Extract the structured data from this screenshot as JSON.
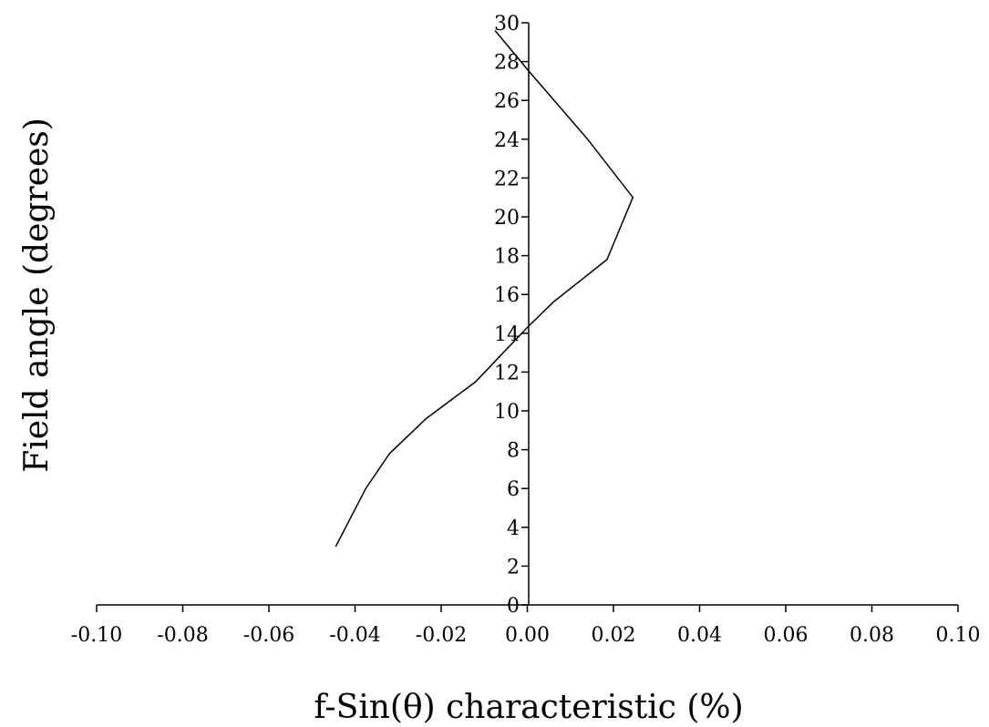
{
  "chart_data": {
    "type": "line",
    "xlabel": "f-Sin(θ) characteristic (%)",
    "ylabel": "Field angle (degrees)",
    "xlim": [
      -0.1,
      0.1
    ],
    "ylim": [
      0,
      30
    ],
    "x_ticks": [
      -0.1,
      -0.08,
      -0.06,
      -0.04,
      -0.02,
      0.0,
      0.02,
      0.04,
      0.06,
      0.08,
      0.1
    ],
    "x_tick_labels": [
      "-0.10",
      "-0.08",
      "-0.06",
      "-0.04",
      "-0.02",
      "0.00",
      "0.02",
      "0.04",
      "0.06",
      "0.08",
      "0.10"
    ],
    "y_ticks": [
      0,
      2,
      4,
      6,
      8,
      10,
      12,
      14,
      16,
      18,
      20,
      22,
      24,
      26,
      28,
      30
    ],
    "y_tick_labels": [
      "0",
      "2",
      "4",
      "6",
      "8",
      "10",
      "12",
      "14",
      "16",
      "18",
      "20",
      "22",
      "24",
      "26",
      "28",
      "30"
    ],
    "grid": false,
    "series": [
      {
        "color": "#000000",
        "points": [
          {
            "x": -0.0445,
            "y": 3.0
          },
          {
            "x": -0.0375,
            "y": 6.0
          },
          {
            "x": -0.032,
            "y": 7.8
          },
          {
            "x": -0.0235,
            "y": 9.6
          },
          {
            "x": -0.012,
            "y": 11.5
          },
          {
            "x": 0.0,
            "y": 14.3
          },
          {
            "x": 0.006,
            "y": 15.6
          },
          {
            "x": 0.0185,
            "y": 17.8
          },
          {
            "x": 0.0245,
            "y": 21.0
          },
          {
            "x": 0.014,
            "y": 24.0
          },
          {
            "x": 0.0,
            "y": 27.6
          },
          {
            "x": -0.0075,
            "y": 29.6
          }
        ]
      }
    ]
  }
}
